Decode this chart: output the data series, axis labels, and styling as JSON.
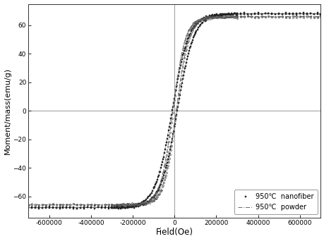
{
  "title": "",
  "xlabel": "Field(Oe)",
  "ylabel": "Moment/mass(emu/g)",
  "xlim": [
    -700000,
    700000
  ],
  "ylim": [
    -75,
    75
  ],
  "xticks": [
    -600000,
    -400000,
    -200000,
    0,
    200000,
    400000,
    600000
  ],
  "yticks": [
    -60,
    -40,
    -20,
    0,
    20,
    40,
    60
  ],
  "legend_entries": [
    "950℃  nanofiber",
    "950℃  powder"
  ],
  "nanofiber_color": "#222222",
  "powder_color": "#555555",
  "Ms_nanofiber": 68.0,
  "Ms_powder": 66.0,
  "Hc_nanofiber": 12000,
  "Hc_powder": 8000,
  "alpha_nanofiber": 80000,
  "alpha_powder": 60000,
  "background_color": "#ffffff"
}
